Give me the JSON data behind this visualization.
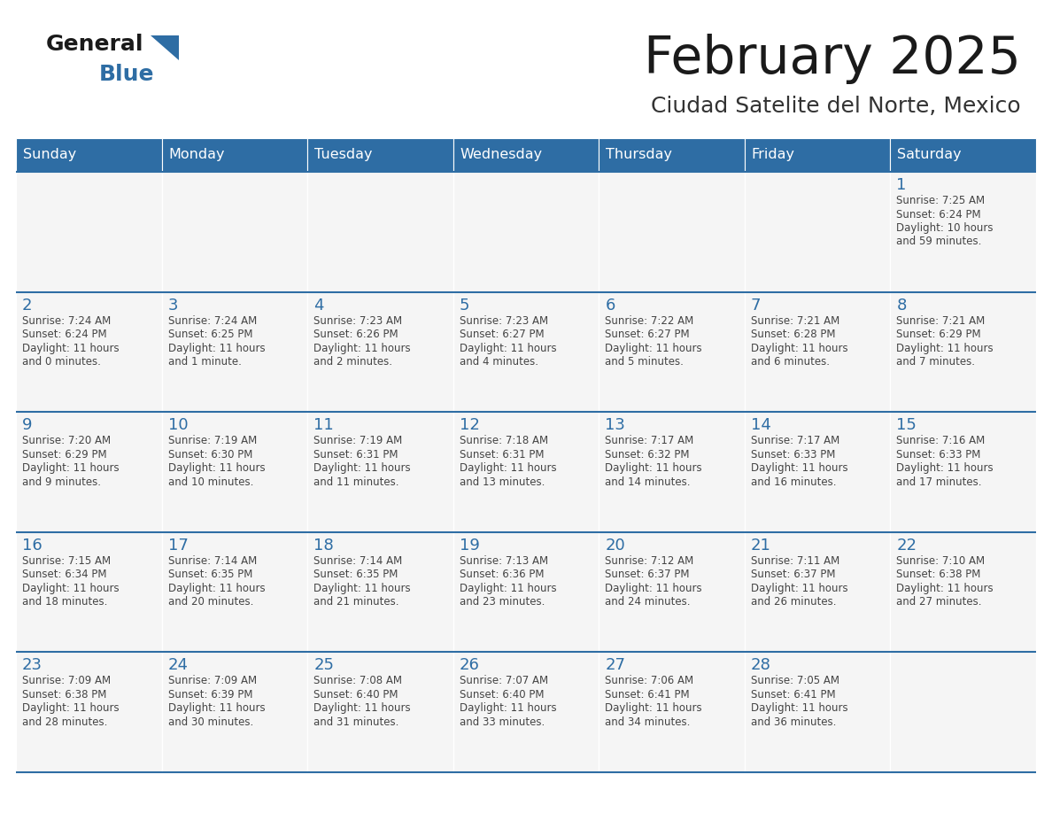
{
  "title": "February 2025",
  "subtitle": "Ciudad Satelite del Norte, Mexico",
  "header_bg": "#2E6DA4",
  "header_text_color": "#FFFFFF",
  "cell_bg": "#F5F5F5",
  "border_color": "#2E6DA4",
  "title_color": "#1a1a1a",
  "subtitle_color": "#333333",
  "day_num_color": "#2E6DA4",
  "cell_text_color": "#444444",
  "logo_general_color": "#1a1a1a",
  "logo_blue_color": "#2E6DA4",
  "logo_triangle_color": "#2E6DA4",
  "days_of_week": [
    "Sunday",
    "Monday",
    "Tuesday",
    "Wednesday",
    "Thursday",
    "Friday",
    "Saturday"
  ],
  "weeks": [
    [
      {
        "day": null,
        "sunrise": null,
        "sunset": null,
        "daylight_line1": null,
        "daylight_line2": null
      },
      {
        "day": null,
        "sunrise": null,
        "sunset": null,
        "daylight_line1": null,
        "daylight_line2": null
      },
      {
        "day": null,
        "sunrise": null,
        "sunset": null,
        "daylight_line1": null,
        "daylight_line2": null
      },
      {
        "day": null,
        "sunrise": null,
        "sunset": null,
        "daylight_line1": null,
        "daylight_line2": null
      },
      {
        "day": null,
        "sunrise": null,
        "sunset": null,
        "daylight_line1": null,
        "daylight_line2": null
      },
      {
        "day": null,
        "sunrise": null,
        "sunset": null,
        "daylight_line1": null,
        "daylight_line2": null
      },
      {
        "day": "1",
        "sunrise": "Sunrise: 7:25 AM",
        "sunset": "Sunset: 6:24 PM",
        "daylight_line1": "Daylight: 10 hours",
        "daylight_line2": "and 59 minutes."
      }
    ],
    [
      {
        "day": "2",
        "sunrise": "Sunrise: 7:24 AM",
        "sunset": "Sunset: 6:24 PM",
        "daylight_line1": "Daylight: 11 hours",
        "daylight_line2": "and 0 minutes."
      },
      {
        "day": "3",
        "sunrise": "Sunrise: 7:24 AM",
        "sunset": "Sunset: 6:25 PM",
        "daylight_line1": "Daylight: 11 hours",
        "daylight_line2": "and 1 minute."
      },
      {
        "day": "4",
        "sunrise": "Sunrise: 7:23 AM",
        "sunset": "Sunset: 6:26 PM",
        "daylight_line1": "Daylight: 11 hours",
        "daylight_line2": "and 2 minutes."
      },
      {
        "day": "5",
        "sunrise": "Sunrise: 7:23 AM",
        "sunset": "Sunset: 6:27 PM",
        "daylight_line1": "Daylight: 11 hours",
        "daylight_line2": "and 4 minutes."
      },
      {
        "day": "6",
        "sunrise": "Sunrise: 7:22 AM",
        "sunset": "Sunset: 6:27 PM",
        "daylight_line1": "Daylight: 11 hours",
        "daylight_line2": "and 5 minutes."
      },
      {
        "day": "7",
        "sunrise": "Sunrise: 7:21 AM",
        "sunset": "Sunset: 6:28 PM",
        "daylight_line1": "Daylight: 11 hours",
        "daylight_line2": "and 6 minutes."
      },
      {
        "day": "8",
        "sunrise": "Sunrise: 7:21 AM",
        "sunset": "Sunset: 6:29 PM",
        "daylight_line1": "Daylight: 11 hours",
        "daylight_line2": "and 7 minutes."
      }
    ],
    [
      {
        "day": "9",
        "sunrise": "Sunrise: 7:20 AM",
        "sunset": "Sunset: 6:29 PM",
        "daylight_line1": "Daylight: 11 hours",
        "daylight_line2": "and 9 minutes."
      },
      {
        "day": "10",
        "sunrise": "Sunrise: 7:19 AM",
        "sunset": "Sunset: 6:30 PM",
        "daylight_line1": "Daylight: 11 hours",
        "daylight_line2": "and 10 minutes."
      },
      {
        "day": "11",
        "sunrise": "Sunrise: 7:19 AM",
        "sunset": "Sunset: 6:31 PM",
        "daylight_line1": "Daylight: 11 hours",
        "daylight_line2": "and 11 minutes."
      },
      {
        "day": "12",
        "sunrise": "Sunrise: 7:18 AM",
        "sunset": "Sunset: 6:31 PM",
        "daylight_line1": "Daylight: 11 hours",
        "daylight_line2": "and 13 minutes."
      },
      {
        "day": "13",
        "sunrise": "Sunrise: 7:17 AM",
        "sunset": "Sunset: 6:32 PM",
        "daylight_line1": "Daylight: 11 hours",
        "daylight_line2": "and 14 minutes."
      },
      {
        "day": "14",
        "sunrise": "Sunrise: 7:17 AM",
        "sunset": "Sunset: 6:33 PM",
        "daylight_line1": "Daylight: 11 hours",
        "daylight_line2": "and 16 minutes."
      },
      {
        "day": "15",
        "sunrise": "Sunrise: 7:16 AM",
        "sunset": "Sunset: 6:33 PM",
        "daylight_line1": "Daylight: 11 hours",
        "daylight_line2": "and 17 minutes."
      }
    ],
    [
      {
        "day": "16",
        "sunrise": "Sunrise: 7:15 AM",
        "sunset": "Sunset: 6:34 PM",
        "daylight_line1": "Daylight: 11 hours",
        "daylight_line2": "and 18 minutes."
      },
      {
        "day": "17",
        "sunrise": "Sunrise: 7:14 AM",
        "sunset": "Sunset: 6:35 PM",
        "daylight_line1": "Daylight: 11 hours",
        "daylight_line2": "and 20 minutes."
      },
      {
        "day": "18",
        "sunrise": "Sunrise: 7:14 AM",
        "sunset": "Sunset: 6:35 PM",
        "daylight_line1": "Daylight: 11 hours",
        "daylight_line2": "and 21 minutes."
      },
      {
        "day": "19",
        "sunrise": "Sunrise: 7:13 AM",
        "sunset": "Sunset: 6:36 PM",
        "daylight_line1": "Daylight: 11 hours",
        "daylight_line2": "and 23 minutes."
      },
      {
        "day": "20",
        "sunrise": "Sunrise: 7:12 AM",
        "sunset": "Sunset: 6:37 PM",
        "daylight_line1": "Daylight: 11 hours",
        "daylight_line2": "and 24 minutes."
      },
      {
        "day": "21",
        "sunrise": "Sunrise: 7:11 AM",
        "sunset": "Sunset: 6:37 PM",
        "daylight_line1": "Daylight: 11 hours",
        "daylight_line2": "and 26 minutes."
      },
      {
        "day": "22",
        "sunrise": "Sunrise: 7:10 AM",
        "sunset": "Sunset: 6:38 PM",
        "daylight_line1": "Daylight: 11 hours",
        "daylight_line2": "and 27 minutes."
      }
    ],
    [
      {
        "day": "23",
        "sunrise": "Sunrise: 7:09 AM",
        "sunset": "Sunset: 6:38 PM",
        "daylight_line1": "Daylight: 11 hours",
        "daylight_line2": "and 28 minutes."
      },
      {
        "day": "24",
        "sunrise": "Sunrise: 7:09 AM",
        "sunset": "Sunset: 6:39 PM",
        "daylight_line1": "Daylight: 11 hours",
        "daylight_line2": "and 30 minutes."
      },
      {
        "day": "25",
        "sunrise": "Sunrise: 7:08 AM",
        "sunset": "Sunset: 6:40 PM",
        "daylight_line1": "Daylight: 11 hours",
        "daylight_line2": "and 31 minutes."
      },
      {
        "day": "26",
        "sunrise": "Sunrise: 7:07 AM",
        "sunset": "Sunset: 6:40 PM",
        "daylight_line1": "Daylight: 11 hours",
        "daylight_line2": "and 33 minutes."
      },
      {
        "day": "27",
        "sunrise": "Sunrise: 7:06 AM",
        "sunset": "Sunset: 6:41 PM",
        "daylight_line1": "Daylight: 11 hours",
        "daylight_line2": "and 34 minutes."
      },
      {
        "day": "28",
        "sunrise": "Sunrise: 7:05 AM",
        "sunset": "Sunset: 6:41 PM",
        "daylight_line1": "Daylight: 11 hours",
        "daylight_line2": "and 36 minutes."
      },
      {
        "day": null,
        "sunrise": null,
        "sunset": null,
        "daylight_line1": null,
        "daylight_line2": null
      }
    ]
  ],
  "fig_width": 11.88,
  "fig_height": 9.18,
  "dpi": 100
}
